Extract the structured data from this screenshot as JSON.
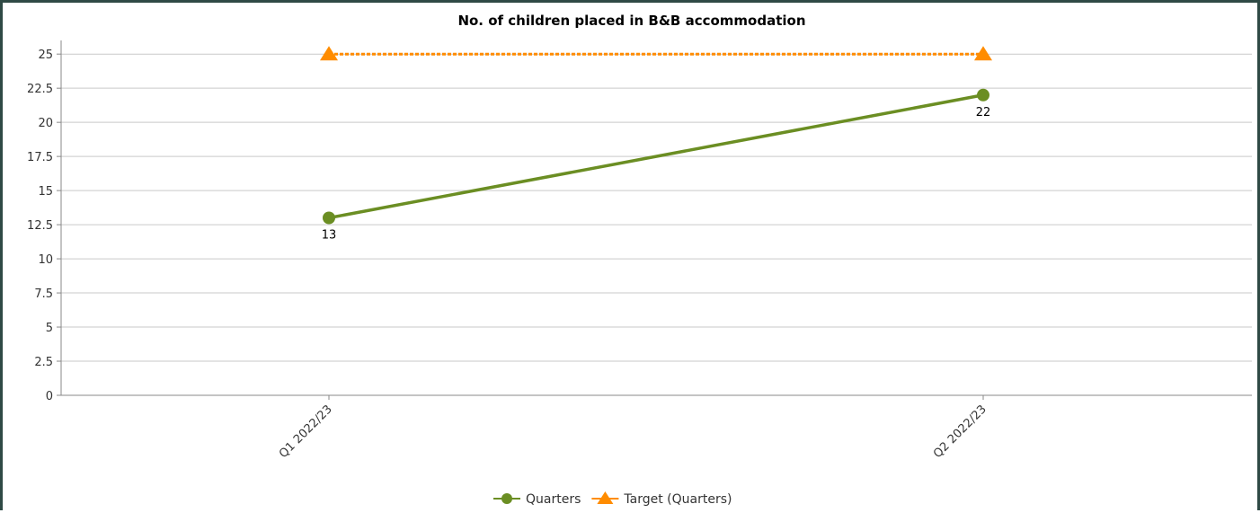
{
  "chart_data": {
    "type": "line",
    "title": "No. of children placed in B&B accommodation",
    "xlabel": "",
    "ylabel": "",
    "categories": [
      "Q1 2022/23",
      "Q2 2022/23"
    ],
    "ylim": [
      0,
      26
    ],
    "yticks": [
      0,
      2.5,
      5,
      7.5,
      10,
      12.5,
      15,
      17.5,
      20,
      22.5,
      25
    ],
    "ytick_labels": [
      "0",
      "2.5",
      "5",
      "7.5",
      "10",
      "12.5",
      "15",
      "17.5",
      "20",
      "22.5",
      "25"
    ],
    "grid": true,
    "legend_position": "bottom-center",
    "series": [
      {
        "name": "Quarters",
        "values": [
          13,
          22
        ],
        "data_labels": [
          "13",
          "22"
        ],
        "color": "#6b8e23",
        "marker": "circle",
        "line": "solid"
      },
      {
        "name": "Target (Quarters)",
        "values": [
          25,
          25
        ],
        "color": "#ff8c00",
        "marker": "triangle",
        "line": "dashed"
      }
    ]
  }
}
